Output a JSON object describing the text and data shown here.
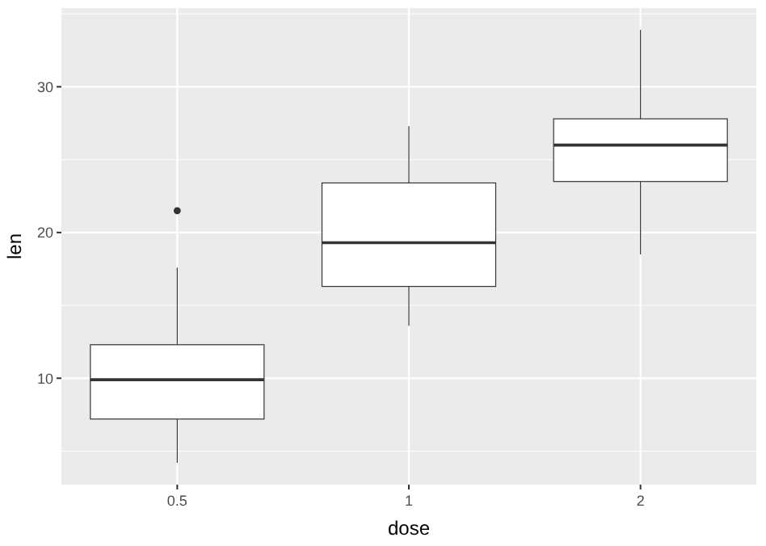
{
  "chart_data": {
    "type": "box",
    "xlabel": "dose",
    "ylabel": "len",
    "categories": [
      "0.5",
      "1",
      "2"
    ],
    "boxes": [
      {
        "low": 4.2,
        "q1": 7.2,
        "median": 9.9,
        "q3": 12.3,
        "high": 17.6,
        "outliers": [
          21.5
        ]
      },
      {
        "low": 13.6,
        "q1": 16.3,
        "median": 19.3,
        "q3": 23.4,
        "high": 27.3
      },
      {
        "low": 18.5,
        "q1": 23.5,
        "median": 26,
        "q3": 27.8,
        "high": 33.9
      }
    ],
    "ylim": [
      2.7,
      35.4
    ],
    "yticks": [
      10,
      20,
      30
    ],
    "grid": true
  }
}
